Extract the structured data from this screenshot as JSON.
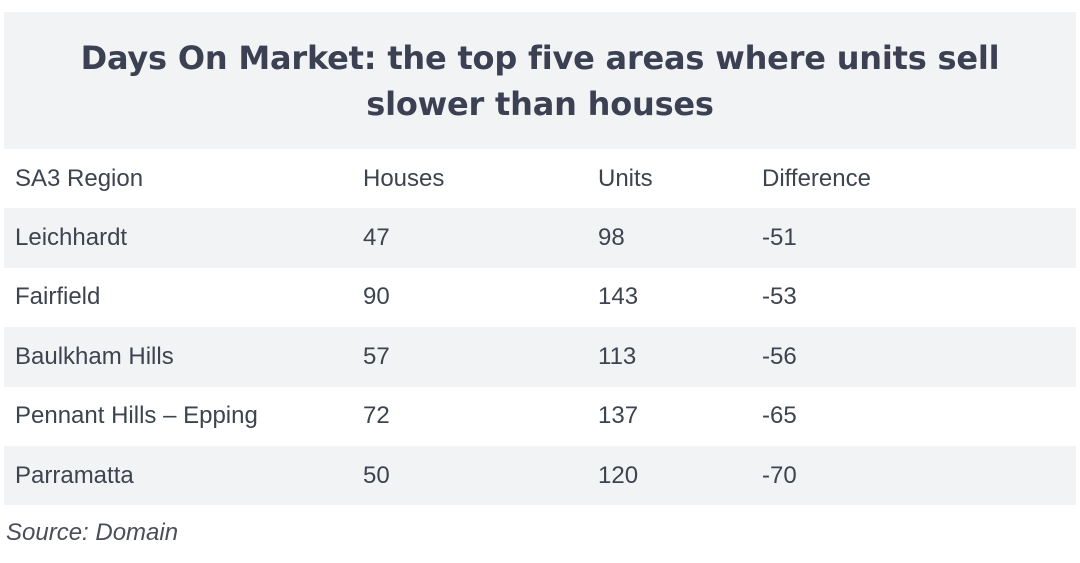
{
  "chart_data": {
    "type": "table",
    "title": "Days On Market: the top five areas where units sell slower than houses",
    "columns": [
      "SA3 Region",
      "Houses",
      "Units",
      "Difference"
    ],
    "rows": [
      [
        "Leichhardt",
        "47",
        "98",
        "-51"
      ],
      [
        "Fairfield",
        "90",
        "143",
        "-53"
      ],
      [
        "Baulkham Hills",
        "57",
        "113",
        "-56"
      ],
      [
        "Pennant Hills – Epping",
        "72",
        "137",
        "-65"
      ],
      [
        "Parramatta",
        "50",
        "120",
        "-70"
      ]
    ],
    "source": "Source: Domain"
  },
  "colors": {
    "title_background": "#f2f3f5",
    "shaded_row": "#f2f3f5",
    "text": "#3e4350"
  }
}
